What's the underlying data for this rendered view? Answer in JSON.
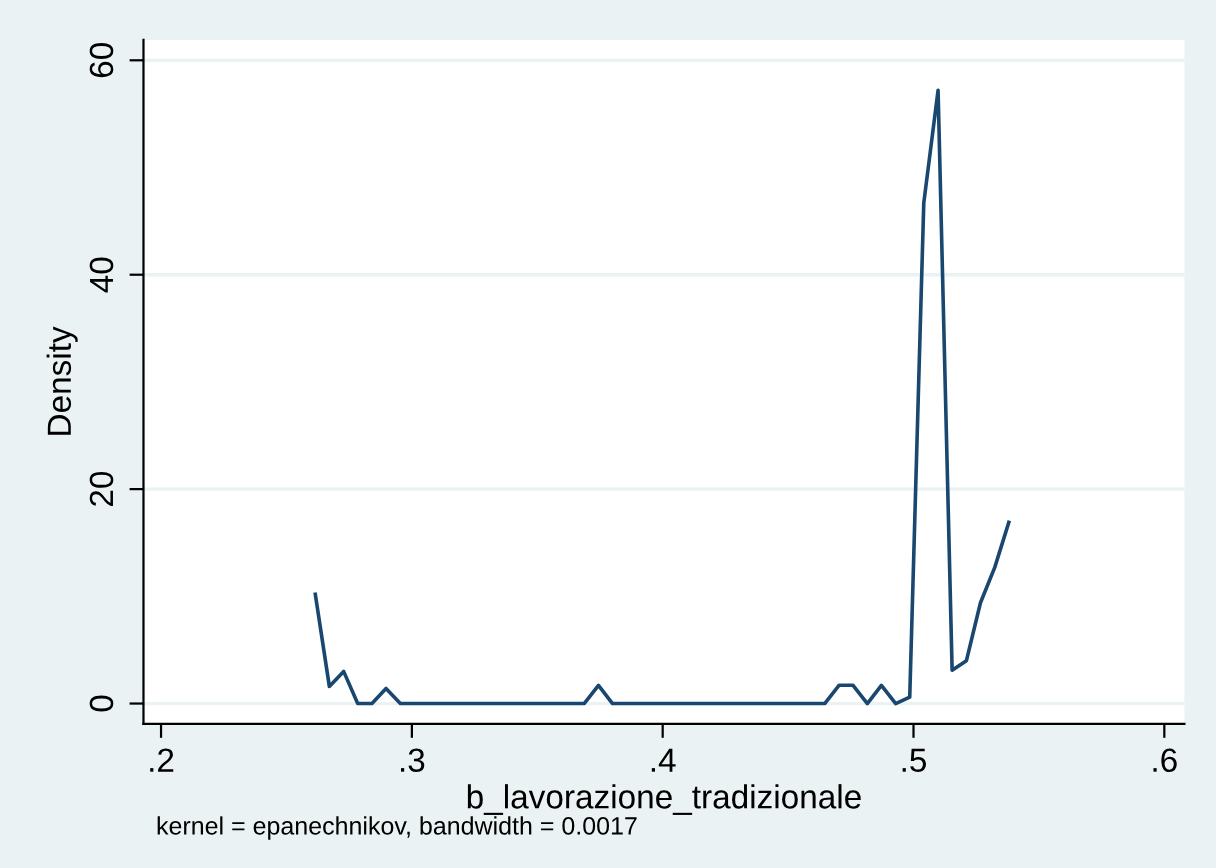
{
  "chart_data": {
    "type": "line",
    "xlabel": "b_lavorazione_tradizionale",
    "ylabel": "Density",
    "annotations": [
      "kernel = epanechnikov, bandwidth = 0.0017"
    ],
    "x": [
      0.2615,
      0.2671,
      0.2728,
      0.2784,
      0.2841,
      0.2897,
      0.2954,
      0.301,
      0.3066,
      0.3123,
      0.3179,
      0.3236,
      0.3292,
      0.3349,
      0.3405,
      0.3461,
      0.3518,
      0.3574,
      0.3631,
      0.3687,
      0.3744,
      0.38,
      0.3856,
      0.3913,
      0.3969,
      0.4026,
      0.4082,
      0.4139,
      0.4195,
      0.4251,
      0.4308,
      0.4364,
      0.4421,
      0.4477,
      0.4534,
      0.459,
      0.4646,
      0.4703,
      0.4759,
      0.4816,
      0.4872,
      0.4929,
      0.4985,
      0.5041,
      0.5098,
      0.5154,
      0.5211,
      0.5267,
      0.5324,
      0.538
    ],
    "series": [
      {
        "color": "#1a476f",
        "values": [
          10.2,
          1.6,
          3.0,
          0,
          0,
          1.4,
          0,
          0,
          0,
          0,
          0,
          0,
          0,
          0,
          0,
          0,
          0,
          0,
          0,
          0,
          1.7,
          0,
          0,
          0,
          0,
          0,
          0,
          0,
          0,
          0,
          0,
          0,
          0,
          0,
          0,
          0,
          0,
          1.7,
          1.7,
          0,
          1.7,
          0,
          0.6,
          46.7,
          57.2,
          3.1,
          4.0,
          9.4,
          12.7,
          16.9
        ]
      }
    ],
    "xlim": [
      0.193,
      0.608
    ],
    "ylim": [
      -1.9,
      61.9
    ],
    "xticks": [
      {
        "value": 0.2,
        "label": ".2"
      },
      {
        "value": 0.3,
        "label": ".3"
      },
      {
        "value": 0.4,
        "label": ".4"
      },
      {
        "value": 0.5,
        "label": ".5"
      },
      {
        "value": 0.6,
        "label": ".6"
      }
    ],
    "yticks": [
      0,
      20,
      40,
      60
    ],
    "grid": "y",
    "marker": "none",
    "line_style": "solid"
  }
}
